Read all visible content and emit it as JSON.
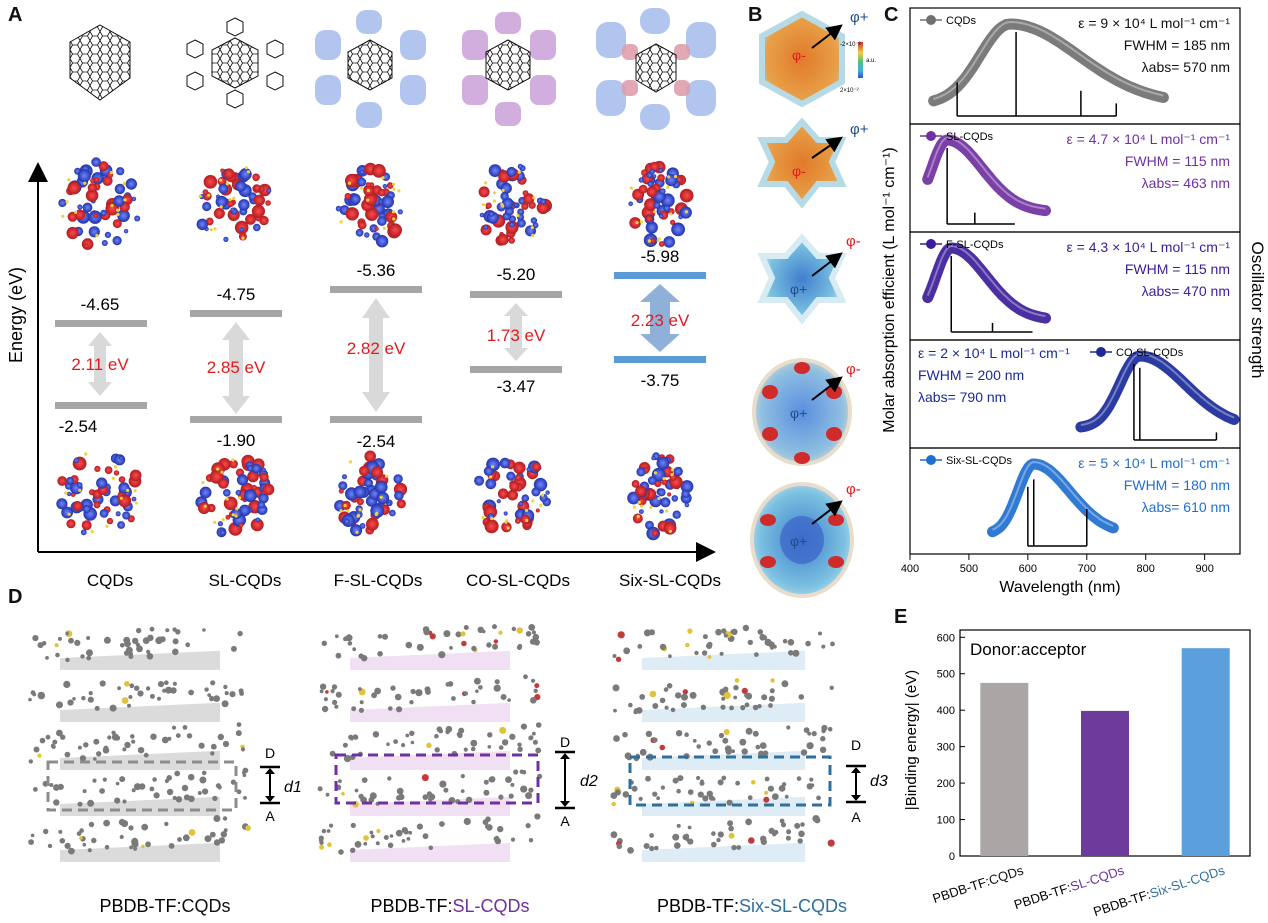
{
  "panel_letters": {
    "a": "A",
    "b": "B",
    "c": "C",
    "d": "D",
    "e": "E"
  },
  "panelA": {
    "ylabel": "Energy (eV)",
    "xticks": [
      "CQDs",
      "SL-CQDs",
      "F-SL-CQDs",
      "CO-SL-CQDs",
      "Six-SL-CQDs"
    ],
    "lumo": [
      "-4.65",
      "-4.75",
      "-5.36",
      "-5.20",
      "-5.98"
    ],
    "homo": [
      "-2.54",
      "-1.90",
      "-2.54",
      "-3.47",
      "-3.75"
    ],
    "gaps": [
      "2.11 eV",
      "2.85 eV",
      "2.82 eV",
      "1.73 eV",
      "2.23 eV"
    ],
    "colors": {
      "gray": "#a6a6a6",
      "blue": "#5b9bd5",
      "red": "#e31a1c",
      "orbital_red": "#c0262d",
      "orbital_blue": "#3a4fc4"
    }
  },
  "panelB": {
    "phi_plus": "φ+",
    "phi_minus": "φ-",
    "colorbar_top": "-2×10⁻²",
    "colorbar_bottom": "2×10⁻²",
    "colorbar_unit": "a.u."
  },
  "panelC": {
    "ylabel_left": "Molar absorption efficient (L mol⁻¹ cm⁻¹)",
    "ylabel_right": "Oscillator strength",
    "xlabel": "Wavelength (nm)",
    "xticks": [
      "400",
      "500",
      "600",
      "700",
      "800",
      "900"
    ],
    "chart_data": {
      "type": "line",
      "xlabel": "Wavelength (nm)",
      "xlim": [
        400,
        960
      ],
      "series": [
        {
          "name": "CQDs",
          "epsilon": "ε = 9 × 10⁴ L mol⁻¹ cm⁻¹",
          "fwhm": "FWHM = 185 nm",
          "lambda": "λabs= 570 nm",
          "peak_nm": 570,
          "range_nm": [
            440,
            830
          ],
          "color": "#707070",
          "sticks_nm": [
            [
              580,
              1.0
            ],
            [
              480,
              0.4
            ],
            [
              690,
              0.3
            ],
            [
              750,
              0.15
            ]
          ]
        },
        {
          "name": "SL-CQDs",
          "epsilon": "ε = 4.7 × 10⁴ L mol⁻¹ cm⁻¹",
          "fwhm": "FWHM = 115 nm",
          "lambda": "λabs= 463 nm",
          "peak_nm": 463,
          "range_nm": [
            430,
            630
          ],
          "color": "#7030a0",
          "sticks_nm": [
            [
              463,
              1.0
            ],
            [
              510,
              0.15
            ]
          ]
        },
        {
          "name": "F-SL-CQDs",
          "epsilon": "ε = 4.3 × 10⁴ L mol⁻¹ cm⁻¹",
          "fwhm": "FWHM = 115 nm",
          "lambda": "λabs= 470 nm",
          "peak_nm": 470,
          "range_nm": [
            430,
            630
          ],
          "color": "#3b1c9a",
          "sticks_nm": [
            [
              470,
              1.0
            ],
            [
              540,
              0.12
            ]
          ]
        },
        {
          "name": "CO-SL-CQDs",
          "epsilon": "ε = 2 × 10⁴ L mol⁻¹ cm⁻¹",
          "fwhm": "FWHM = 200 nm",
          "lambda": "λabs= 790 nm",
          "peak_nm": 790,
          "range_nm": [
            690,
            950
          ],
          "color": "#1a2a9a",
          "sticks_nm": [
            [
              780,
              1.0
            ],
            [
              790,
              0.95
            ],
            [
              920,
              0.1
            ]
          ]
        },
        {
          "name": "Six-SL-CQDs",
          "epsilon": "ε = 5 × 10⁴ L mol⁻¹ cm⁻¹",
          "fwhm": "FWHM = 180 nm",
          "lambda": "λabs= 610 nm",
          "peak_nm": 610,
          "range_nm": [
            540,
            745
          ],
          "color": "#1f6fd0",
          "sticks_nm": [
            [
              600,
              0.8
            ],
            [
              610,
              0.9
            ],
            [
              700,
              0.5
            ]
          ]
        }
      ]
    }
  },
  "panelD": {
    "labels": [
      {
        "prefix": "PBDB-TF:",
        "suffix": "CQDs",
        "color": "#111111"
      },
      {
        "prefix": "PBDB-TF:",
        "suffix": "SL-CQDs",
        "color": "#7030a0"
      },
      {
        "prefix": "PBDB-TF:",
        "suffix": "Six-SL-CQDs",
        "color": "#2e6f9e"
      }
    ],
    "d_labels": [
      "d1",
      "d2",
      "d3"
    ],
    "d_subs": [
      "1",
      "2",
      "3"
    ],
    "top_label": "D",
    "bottom_label": "A",
    "box_colors": [
      "#8c8c8c",
      "#7030a0",
      "#2e6f9e"
    ]
  },
  "panelE": {
    "annotation": "Donor:acceptor",
    "ylabel": "|Binding energy| (eV)",
    "chart_data": {
      "type": "bar",
      "categories": [
        "PBDB-TF:CQDs",
        "PBDB-TF:SL-CQDs",
        "PBDB-TF:Six-SL-CQDs"
      ],
      "category_prefix": "PBDB-TF:",
      "category_suffix": [
        "CQDs",
        "SL-CQDs",
        "Six-SL-CQDs"
      ],
      "category_suffix_colors": [
        "#111111",
        "#7030a0",
        "#2e6f9e"
      ],
      "values": [
        475,
        398,
        570
      ],
      "bar_colors": [
        "#aaa6a6",
        "#6c3b9c",
        "#5b9fdc"
      ],
      "ylim": [
        0,
        620
      ],
      "yticks": [
        "0",
        "100",
        "200",
        "300",
        "400",
        "500",
        "600"
      ],
      "ylabel": "|Binding energy| (eV)"
    }
  }
}
